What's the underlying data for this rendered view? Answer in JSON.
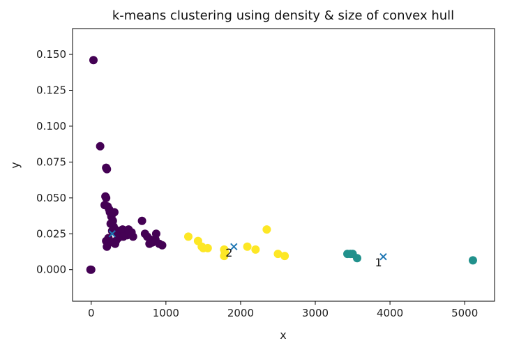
{
  "chart_data": {
    "type": "scatter",
    "title": "k-means clustering using density & size of convex hull",
    "xlabel": "x",
    "ylabel": "y",
    "xlim": [
      -250,
      5400
    ],
    "ylim": [
      -0.022,
      0.168
    ],
    "xticks": [
      0,
      1000,
      2000,
      3000,
      4000,
      5000
    ],
    "xtick_labels": [
      "0",
      "1000",
      "2000",
      "3000",
      "4000",
      "5000"
    ],
    "yticks": [
      0.0,
      0.025,
      0.05,
      0.075,
      0.1,
      0.125,
      0.15
    ],
    "ytick_labels": [
      "0.000",
      "0.025",
      "0.050",
      "0.075",
      "0.100",
      "0.125",
      "0.150"
    ],
    "grid": false,
    "colors": {
      "cluster_0": "#440154",
      "cluster_1": "#21918c",
      "cluster_2": "#fde725",
      "centroid": "#1f77b4"
    },
    "series": [
      {
        "cluster": 0,
        "color": "#440154",
        "points": [
          [
            -10,
            0.0
          ],
          [
            0,
            0.0
          ],
          [
            30,
            0.146
          ],
          [
            120,
            0.086
          ],
          [
            200,
            0.071
          ],
          [
            210,
            0.07
          ],
          [
            190,
            0.051
          ],
          [
            200,
            0.05
          ],
          [
            180,
            0.045
          ],
          [
            220,
            0.044
          ],
          [
            240,
            0.042
          ],
          [
            250,
            0.04
          ],
          [
            310,
            0.04
          ],
          [
            270,
            0.037
          ],
          [
            290,
            0.034
          ],
          [
            260,
            0.032
          ],
          [
            300,
            0.03
          ],
          [
            320,
            0.028
          ],
          [
            280,
            0.027
          ],
          [
            330,
            0.026
          ],
          [
            380,
            0.027
          ],
          [
            420,
            0.028
          ],
          [
            450,
            0.026
          ],
          [
            500,
            0.028
          ],
          [
            540,
            0.026
          ],
          [
            560,
            0.023
          ],
          [
            480,
            0.024
          ],
          [
            430,
            0.023
          ],
          [
            360,
            0.022
          ],
          [
            330,
            0.02
          ],
          [
            290,
            0.019
          ],
          [
            250,
            0.02
          ],
          [
            230,
            0.022
          ],
          [
            200,
            0.02
          ],
          [
            210,
            0.016
          ],
          [
            320,
            0.018
          ],
          [
            680,
            0.034
          ],
          [
            720,
            0.025
          ],
          [
            750,
            0.023
          ],
          [
            790,
            0.021
          ],
          [
            820,
            0.019
          ],
          [
            870,
            0.025
          ],
          [
            860,
            0.021
          ],
          [
            910,
            0.018
          ],
          [
            950,
            0.017
          ],
          [
            780,
            0.018
          ]
        ]
      },
      {
        "cluster": 1,
        "color": "#21918c",
        "points": [
          [
            3430,
            0.011
          ],
          [
            3470,
            0.011
          ],
          [
            3500,
            0.011
          ],
          [
            3560,
            0.008
          ],
          [
            5110,
            0.0065
          ]
        ]
      },
      {
        "cluster": 2,
        "color": "#fde725",
        "points": [
          [
            1300,
            0.023
          ],
          [
            1430,
            0.02
          ],
          [
            1480,
            0.016
          ],
          [
            1500,
            0.015
          ],
          [
            1560,
            0.015
          ],
          [
            1780,
            0.014
          ],
          [
            1790,
            0.012
          ],
          [
            1780,
            0.0095
          ],
          [
            2090,
            0.016
          ],
          [
            2200,
            0.014
          ],
          [
            2350,
            0.028
          ],
          [
            2500,
            0.011
          ],
          [
            2590,
            0.0095
          ]
        ]
      }
    ],
    "centroids": [
      {
        "x": 280,
        "y": 0.025
      },
      {
        "x": 3910,
        "y": 0.009,
        "label": "1"
      },
      {
        "x": 1910,
        "y": 0.016,
        "label": "2"
      }
    ]
  }
}
